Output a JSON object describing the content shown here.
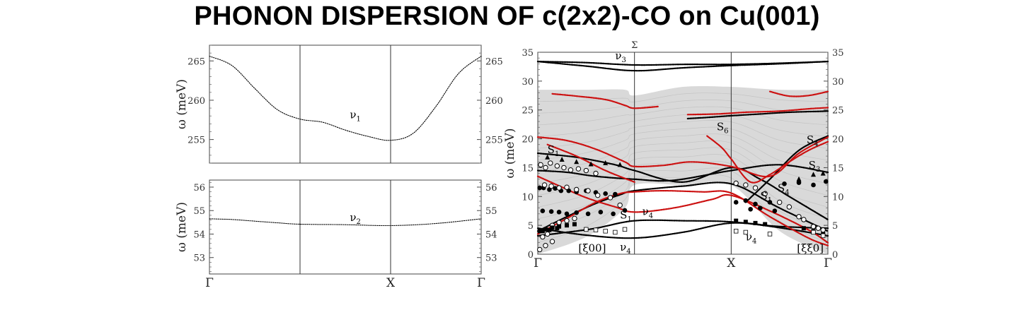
{
  "title": "PHONON DISPERSION OF c(2x2)-CO on Cu(001)",
  "chart_data": [
    {
      "id": "nu1",
      "type": "line",
      "ylabel": "ω (meV)",
      "ylim": [
        252,
        267
      ],
      "yticks": [
        255,
        260,
        265
      ],
      "xlim": [
        0,
        3
      ],
      "vlines": [
        1,
        2
      ],
      "series": [
        {
          "name": "",
          "x": [
            0,
            0.25,
            0.5,
            0.75,
            1.0,
            1.25,
            1.5,
            1.75,
            2.0,
            2.25,
            2.5,
            2.75,
            3.0
          ],
          "y": [
            265.6,
            264.4,
            261.5,
            258.8,
            257.6,
            257.2,
            256.2,
            255.4,
            254.9,
            255.8,
            259.2,
            263.4,
            265.6
          ]
        }
      ],
      "annotations": [
        {
          "text": "ν",
          "sub": "1",
          "x": 1.55,
          "y": 257.7
        }
      ]
    },
    {
      "id": "nu2",
      "type": "line",
      "ylabel": "ω (meV)",
      "ylim": [
        52.3,
        56.3
      ],
      "yticks": [
        53,
        54,
        55,
        56
      ],
      "xlim": [
        0,
        3
      ],
      "vlines": [
        1,
        2
      ],
      "xticklabels": [
        {
          "x": 0,
          "label": "Γ"
        },
        {
          "x": 2,
          "label": "X"
        },
        {
          "x": 3,
          "label": "Γ"
        }
      ],
      "series": [
        {
          "name": "",
          "x": [
            0,
            0.25,
            0.5,
            0.75,
            1.0,
            1.5,
            2.0,
            2.5,
            3.0
          ],
          "y": [
            54.65,
            54.62,
            54.55,
            54.48,
            54.42,
            54.4,
            54.36,
            54.45,
            54.65
          ]
        }
      ],
      "annotations": [
        {
          "text": "ν",
          "sub": "2",
          "x": 1.55,
          "y": 54.55
        }
      ]
    },
    {
      "id": "surface",
      "type": "scatter",
      "ylabel": "ω (meV)",
      "ylim": [
        0,
        35
      ],
      "yticks": [
        0,
        5,
        10,
        15,
        20,
        25,
        30,
        35
      ],
      "xlim": [
        0,
        3
      ],
      "vlines": [
        1,
        2
      ],
      "xticklabels": [
        {
          "x": 0,
          "label": "Γ"
        },
        {
          "x": 2,
          "label": "X"
        },
        {
          "x": 3,
          "label": "Γ"
        }
      ],
      "top_label": {
        "x": 1,
        "label": "Σ"
      },
      "bulk_band": {
        "x": [
          0,
          0.5,
          0.9,
          1.0,
          1.5,
          2.0,
          2.5,
          3.0
        ],
        "lower": [
          0,
          3,
          8,
          12,
          12,
          12,
          4,
          0
        ],
        "upper": [
          28.5,
          28.5,
          28.5,
          27.5,
          29,
          29,
          28.5,
          28.5
        ]
      },
      "series": [
        {
          "name": "",
          "color": "#000000",
          "x": [
            0,
            0.5,
            1.0,
            1.5,
            2.0,
            2.5,
            3.0
          ],
          "y": [
            33.4,
            33.2,
            32.8,
            32.9,
            32.9,
            33.1,
            33.4
          ]
        },
        {
          "name": "",
          "color": "#000000",
          "x": [
            0,
            0.5,
            1.0,
            1.5,
            2.0,
            2.5,
            3.0
          ],
          "y": [
            33.4,
            32.6,
            31.8,
            32.3,
            32.7,
            33.0,
            33.4
          ]
        },
        {
          "name": "",
          "color": "#000000",
          "x": [
            0,
            0.3,
            0.6,
            0.85,
            1.0,
            1.5,
            2.0,
            2.5,
            3.0
          ],
          "y": [
            4.0,
            6.5,
            8.8,
            10.3,
            11.0,
            11.8,
            12.2,
            8.0,
            4.0
          ]
        },
        {
          "name": "",
          "color": "#000000",
          "x": [
            0,
            0.3,
            0.6,
            1.0,
            1.5,
            2.0,
            2.5,
            3.0
          ],
          "y": [
            3.2,
            3.8,
            4.5,
            5.8,
            5.8,
            5.6,
            4.6,
            3.2
          ]
        },
        {
          "name": "",
          "color": "#000000",
          "x": [
            0,
            0.5,
            1.0,
            1.5,
            2.0,
            2.5,
            3.0
          ],
          "y": [
            4.5,
            3.3,
            2.8,
            3.8,
            5.4,
            4.8,
            4.5
          ]
        },
        {
          "name": "",
          "color": "#000000",
          "x": [
            0,
            0.4,
            0.8,
            1.0,
            1.5,
            2.0,
            2.3,
            2.6,
            3.0
          ],
          "y": [
            17.5,
            16.8,
            15.5,
            14.5,
            12.5,
            15.0,
            13.0,
            10.0,
            6.0
          ]
        },
        {
          "name": "",
          "color": "#000000",
          "x": [
            0,
            0.3,
            0.6,
            1.0,
            1.4,
            2.0,
            2.5,
            3.0
          ],
          "y": [
            14.5,
            14.2,
            13.5,
            13.0,
            12.8,
            14.5,
            15.5,
            14.2
          ]
        },
        {
          "name": "",
          "color": "#000000",
          "x": [
            1.55,
            1.75,
            2.0,
            2.3,
            2.6,
            3.0
          ],
          "y": [
            23.5,
            23.7,
            24.0,
            24.3,
            24.6,
            24.8
          ]
        },
        {
          "name": "",
          "color": "#000000",
          "x": [
            2.15,
            2.4,
            2.7,
            3.0
          ],
          "y": [
            9.0,
            13.0,
            18.0,
            20.5
          ]
        },
        {
          "name": "",
          "color": "#cc1111",
          "x": [
            0,
            0.3,
            0.6,
            0.9,
            1.0,
            1.3,
            1.6,
            2.0,
            2.4,
            2.7,
            3.0
          ],
          "y": [
            20.3,
            19.7,
            18.2,
            16.0,
            15.2,
            15.4,
            16.0,
            15.2,
            13.5,
            17.5,
            20.3
          ]
        },
        {
          "name": "",
          "color": "#cc1111",
          "x": [
            0,
            0.2,
            0.5,
            0.8,
            1.0,
            1.4,
            1.8,
            2.0,
            2.4,
            2.8,
            3.0
          ],
          "y": [
            13.5,
            12.0,
            9.8,
            8.2,
            7.3,
            8.0,
            9.5,
            10.2,
            7.5,
            4.2,
            2.0
          ]
        },
        {
          "name": "",
          "color": "#cc1111",
          "x": [
            0,
            0.3,
            0.6,
            0.85,
            1.0,
            1.3,
            1.7,
            2.0,
            2.4,
            2.8,
            3.0
          ],
          "y": [
            3.5,
            6.2,
            9.0,
            10.5,
            10.8,
            11.0,
            10.8,
            10.6,
            6.5,
            2.8,
            1.5
          ]
        },
        {
          "name": "",
          "color": "#cc1111",
          "x": [
            0.15,
            0.4,
            0.7,
            0.9,
            1.0,
            1.25
          ],
          "y": [
            27.8,
            27.4,
            26.8,
            25.8,
            25.3,
            25.6
          ]
        },
        {
          "name": "",
          "color": "#cc1111",
          "x": [
            1.55,
            1.85,
            2.15,
            2.5,
            2.8,
            3.0
          ],
          "y": [
            24.2,
            24.3,
            24.6,
            24.8,
            25.2,
            25.4
          ]
        },
        {
          "name": "",
          "color": "#cc1111",
          "x": [
            2.4,
            2.6,
            2.8,
            3.0
          ],
          "y": [
            28.2,
            27.4,
            27.5,
            28.2
          ]
        },
        {
          "name": "",
          "color": "#cc1111",
          "x": [
            1.75,
            1.9,
            2.0,
            2.2,
            2.4,
            2.6,
            2.8,
            3.0
          ],
          "y": [
            20.5,
            18.5,
            16.5,
            12.5,
            13.8,
            16.0,
            18.0,
            19.5
          ]
        },
        {
          "name": "",
          "color": "#cc1111",
          "x": [
            0.1,
            0.4,
            0.7,
            1.0
          ],
          "y": [
            19.0,
            17.0,
            14.5,
            12.5
          ]
        }
      ],
      "experimental": {
        "filled_circles": {
          "x": [
            0.02,
            0.06,
            0.12,
            0.18,
            0.24,
            0.32,
            0.4,
            0.5,
            0.6,
            0.7,
            0.8,
            2.05,
            2.15,
            2.25,
            2.4,
            2.55,
            2.7,
            2.85,
            2.98,
            0.05,
            0.14,
            0.22,
            0.3,
            0.4,
            0.52,
            0.65,
            0.78,
            0.9,
            2.2,
            2.3,
            2.45
          ],
          "y": [
            11.5,
            11.5,
            11.2,
            11.4,
            11.0,
            11.0,
            10.8,
            11.0,
            10.7,
            10.5,
            10.4,
            9.0,
            9.3,
            8.7,
            9.0,
            12.2,
            12.4,
            12.0,
            12.6,
            7.5,
            7.4,
            7.3,
            7.0,
            7.2,
            7.0,
            7.3,
            7.0,
            7.6,
            7.8,
            8.0,
            7.5
          ]
        },
        "open_circles": {
          "x": [
            0.03,
            0.08,
            0.13,
            0.2,
            0.27,
            0.34,
            0.42,
            0.5,
            0.6,
            0.07,
            0.14,
            0.22,
            0.3,
            0.4,
            0.52,
            0.62,
            0.75,
            0.85,
            0.05,
            0.1,
            0.15,
            0.22,
            0.3,
            0.38,
            0.02,
            0.08,
            0.15,
            2.05,
            2.15,
            2.25,
            2.35,
            2.5,
            2.7,
            2.9,
            2.6,
            2.75,
            2.85,
            2.95
          ],
          "y": [
            15.5,
            15.0,
            15.8,
            15.3,
            15.0,
            14.6,
            14.8,
            14.5,
            14.0,
            12.0,
            11.8,
            11.5,
            11.6,
            11.2,
            11.0,
            10.2,
            9.8,
            8.5,
            3.0,
            3.5,
            5.0,
            5.5,
            5.8,
            6.2,
            0.8,
            1.5,
            2.2,
            12.3,
            12.0,
            11.5,
            10.5,
            9.0,
            6.5,
            4.5,
            8.2,
            6.0,
            4.8,
            4.2
          ]
        },
        "filled_triangles": {
          "x": [
            0.1,
            0.25,
            0.4,
            0.55,
            0.7,
            0.85,
            2.7,
            2.85,
            2.95
          ],
          "y": [
            16.8,
            16.4,
            16.0,
            15.6,
            15.8,
            15.5,
            13.0,
            13.8,
            14.0
          ]
        },
        "filled_squares": {
          "x": [
            0.02,
            0.08,
            0.15,
            0.22,
            0.3,
            0.38,
            2.05,
            2.15,
            2.25,
            2.35,
            2.75,
            2.85,
            2.95,
            0.05,
            0.12,
            0.2
          ],
          "y": [
            4.0,
            4.3,
            4.6,
            4.8,
            5.0,
            5.2,
            5.8,
            5.6,
            5.4,
            5.2,
            4.5,
            4.0,
            3.5,
            4.0,
            4.2,
            4.5
          ]
        },
        "open_squares": {
          "x": [
            0.5,
            0.6,
            0.7,
            0.8,
            0.9,
            2.05,
            2.15,
            2.4,
            2.85,
            2.95
          ],
          "y": [
            4.3,
            4.2,
            4.0,
            3.8,
            4.3,
            4.0,
            3.8,
            3.5,
            3.8,
            3.2
          ]
        }
      },
      "annotations": [
        {
          "text": "ν",
          "sub": "3",
          "x": 0.8,
          "y": 33.8
        },
        {
          "text": "S",
          "sub": "6",
          "x": 1.85,
          "y": 21.5
        },
        {
          "text": "S",
          "sub": "1",
          "x": 0.1,
          "y": 17.5
        },
        {
          "text": "S",
          "sub": "4",
          "x": 2.78,
          "y": 19.2
        },
        {
          "text": "S",
          "sub": "3",
          "x": 2.8,
          "y": 14.8
        },
        {
          "text": "S",
          "sub": "4",
          "x": 2.48,
          "y": 10.8
        },
        {
          "text": "S",
          "sub": "1",
          "x": 2.3,
          "y": 9.5
        },
        {
          "text": "S",
          "sub": "1",
          "x": 0.85,
          "y": 6.2
        },
        {
          "text": "ν",
          "sub": "4",
          "x": 1.08,
          "y": 6.8
        },
        {
          "text": "ν",
          "sub": "4",
          "x": 0.85,
          "y": 0.6
        },
        {
          "text": "ν",
          "sub": "4",
          "x": 2.15,
          "y": 2.4
        },
        {
          "text": "[ξ00]",
          "sub": "",
          "x": 0.42,
          "y": 0.4
        },
        {
          "text": "[ξξ0]",
          "sub": "",
          "x": 2.68,
          "y": 0.4
        }
      ]
    }
  ]
}
